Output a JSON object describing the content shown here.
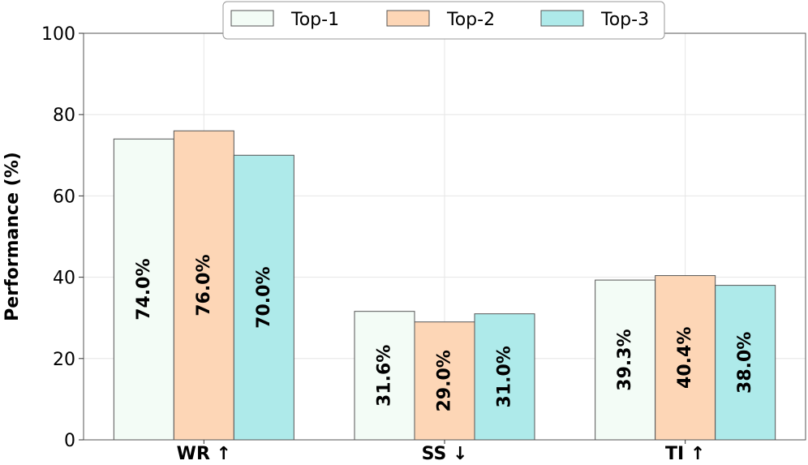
{
  "chart_data": {
    "type": "bar",
    "categories": [
      "WR ↑",
      "SS ↓",
      "TI ↑"
    ],
    "series": [
      {
        "name": "Top-1",
        "values": [
          74.0,
          31.6,
          39.3
        ],
        "color": "#f3fcf6",
        "labels": [
          "74.0%",
          "31.6%",
          "39.3%"
        ]
      },
      {
        "name": "Top-2",
        "values": [
          76.0,
          29.0,
          40.4
        ],
        "color": "#fdd6b6",
        "labels": [
          "76.0%",
          "29.0%",
          "40.4%"
        ]
      },
      {
        "name": "Top-3",
        "values": [
          70.0,
          31.0,
          38.0
        ],
        "color": "#aeeaea",
        "labels": [
          "70.0%",
          "31.0%",
          "38.0%"
        ]
      }
    ],
    "ylabel": "Performance (%)",
    "xlabel": "",
    "ylim": [
      0,
      100
    ],
    "yticks": [
      0,
      20,
      40,
      60,
      80,
      100
    ],
    "grid": true,
    "legend": "top-center"
  }
}
